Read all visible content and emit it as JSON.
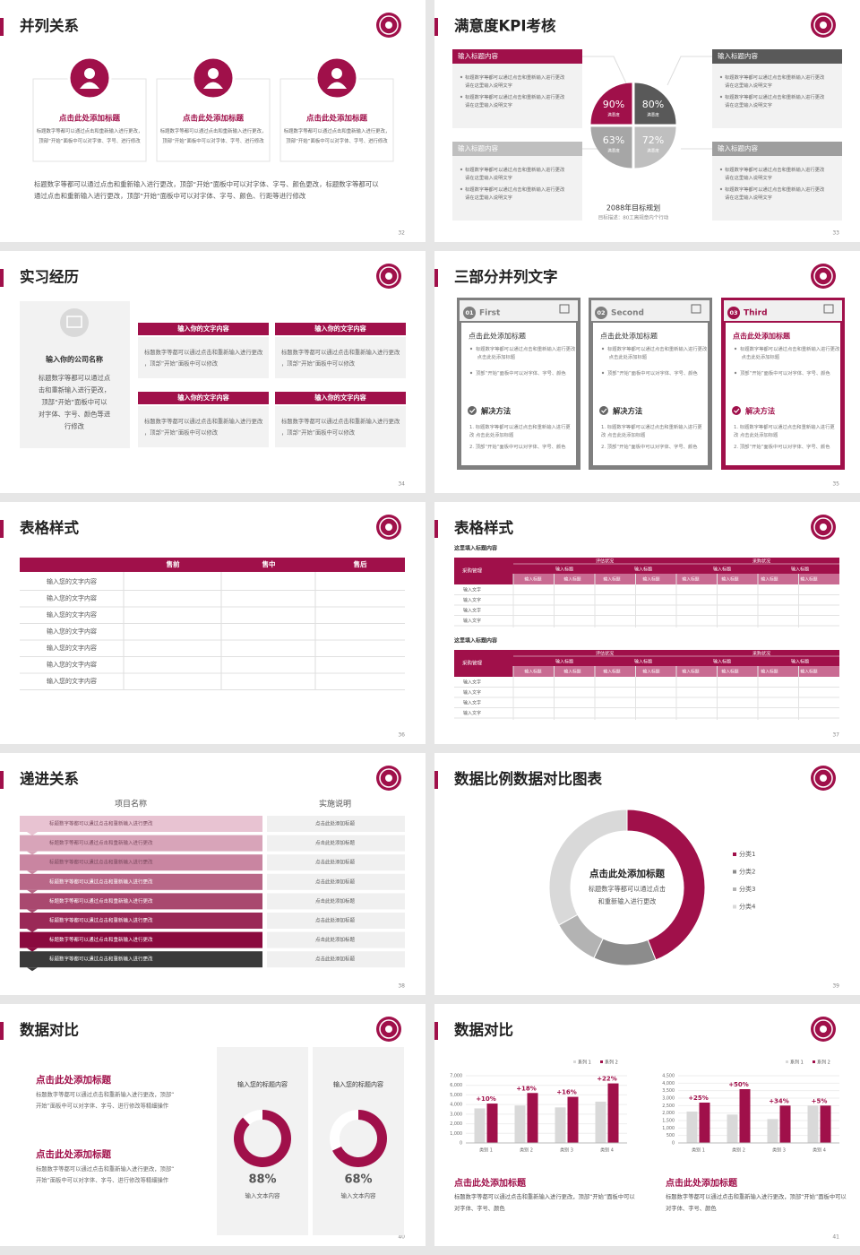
{
  "slides": [
    {
      "title": "并列关系",
      "page": "32",
      "items": [
        {
          "heading": "点击此处添加标题",
          "text": "标题数字等都可以通过点击和重新输入进行更改，顶部“开始”面板中可以对字体、字号、进行修改"
        },
        {
          "heading": "点击此处添加标题",
          "text": "标题数字等都可以通过点击和重新输入进行更改，顶部“开始”面板中可以对字体、字号、进行修改"
        },
        {
          "heading": "点击此处添加标题",
          "text": "标题数字等都可以通过点击和重新输入进行更改，顶部“开始”面板中可以对字体、字号、进行修改"
        }
      ],
      "body": "标题数字等都可以通过点击和重新输入进行更改，顶部“开始”面板中可以对字体、字号、颜色更改，标题数字等都可以通过点击和重新输入进行更改，顶部“开始”面板中可以对字体、字号、颜色、行距等进行修改"
    },
    {
      "title": "满意度KPI考核",
      "page": "33",
      "boxes": [
        {
          "header": "输入标题内容",
          "bullets": [
            "标题数字等都可以通过点击和重新输入进行更改 请在这里输入说明文字",
            "标题数字等都可以通过点击和重新输入进行更改 请在这里输入说明文字"
          ]
        },
        {
          "header": "输入标题内容",
          "bullets": [
            "标题数字等都可以通过点击和重新输入进行更改 请在这里输入说明文字",
            "标题数字等都可以通过点击和重新输入进行更改 请在这里输入说明文字"
          ]
        },
        {
          "header": "输入标题内容",
          "bullets": [
            "标题数字等都可以通过点击和重新输入进行更改 请在这里输入说明文字",
            "标题数字等都可以通过点击和重新输入进行更改 请在这里输入说明文字"
          ]
        },
        {
          "header": "输入标题内容",
          "bullets": [
            "标题数字等都可以通过点击和重新输入进行更改 请在这里输入说明文字",
            "标题数字等都可以通过点击和重新输入进行更改 请在这里输入说明文字"
          ]
        }
      ],
      "kpis": {
        "values": [
          90,
          80,
          63,
          72
        ],
        "value_labels": [
          "90%",
          "80%",
          "63%",
          "72%"
        ],
        "sublabels": [
          "满意度",
          "满意度",
          "满意度",
          "满意度"
        ],
        "colors": [
          "#a0104a",
          "#595959",
          "#a6a6a6",
          "#bfbfbf"
        ]
      },
      "caption": "2088年目标规划",
      "caption_note": "目标描述：80工离规章内个行动"
    },
    {
      "title": "实习经历",
      "page": "34",
      "company": "输入你的公司名称",
      "description": "标题数字等都可以通过点击和重新输入进行更改，顶部“开始”面板中可以对字体、字号、颜色等进行修改",
      "cards": [
        {
          "header": "输入你的文字内容",
          "text": "标题数字等都可以通过点击和重新输入进行更改，顶部“开始”面板中可以修改"
        },
        {
          "header": "输入你的文字内容",
          "text": "标题数字等都可以通过点击和重新输入进行更改，顶部“开始”面板中可以修改"
        },
        {
          "header": "输入你的文字内容",
          "text": "标题数字等都可以通过点击和重新输入进行更改，顶部“开始”面板中可以修改"
        },
        {
          "header": "输入你的文字内容",
          "text": "标题数字等都可以通过点击和重新输入进行更改，顶部“开始”面板中可以修改"
        }
      ]
    },
    {
      "title": "三部分并列文字",
      "page": "35",
      "cards": [
        {
          "num": "01",
          "name": "First",
          "heading": "点击此处添加标题",
          "bullets": [
            "标题数字等都可以通过点击和重新输入进行更改 点击此处添加标题",
            "顶部“开始”面板中可以对字体、字号、颜色"
          ],
          "method": "解决方法",
          "steps": [
            "1. 标题数字等都可以通过点击和重新输入进行更改 点击此处添加标题",
            "2. 顶部“开始”面板中可以对字体、字号、颜色"
          ]
        },
        {
          "num": "02",
          "name": "Second",
          "heading": "点击此处添加标题",
          "bullets": [
            "标题数字等都可以通过点击和重新输入进行更改 点击此处添加标题",
            "顶部“开始”面板中可以对字体、字号、颜色"
          ],
          "method": "解决方法",
          "steps": [
            "1. 标题数字等都可以通过点击和重新输入进行更改 点击此处添加标题",
            "2. 顶部“开始”面板中可以对字体、字号、颜色"
          ]
        },
        {
          "num": "03",
          "name": "Third",
          "heading": "点击此处添加标题",
          "bullets": [
            "标题数字等都可以通过点击和重新输入进行更改 点击此处添加标题",
            "顶部“开始”面板中可以对字体、字号、颜色"
          ],
          "method": "解决方法",
          "steps": [
            "1. 标题数字等都可以通过点击和重新输入进行更改 点击此处添加标题",
            "2. 顶部“开始”面板中可以对字体、字号、颜色"
          ]
        }
      ]
    },
    {
      "title": "表格样式",
      "page": "36",
      "headers": [
        "售前",
        "售中",
        "售后"
      ],
      "rows": [
        "输入您的文字内容",
        "输入您的文字内容",
        "输入您的文字内容",
        "输入您的文字内容",
        "输入您的文字内容",
        "输入您的文字内容",
        "输入您的文字内容"
      ]
    },
    {
      "title": "表格样式",
      "page": "37",
      "tables": [
        {
          "subtitle": "这里填入标题内容",
          "corner": "采购管理",
          "groups": [
            "评估状况",
            "采购状况"
          ],
          "heads": [
            "输入标题",
            "输入标题",
            "输入标题",
            "输入标题"
          ],
          "subheads": [
            "输入标题",
            "输入标题",
            "输入标题",
            "输入标题",
            "输入标题",
            "输入标题",
            "输入标题",
            "输入标题"
          ],
          "rows": [
            "输入文字",
            "输入文字",
            "输入文字",
            "输入文字"
          ]
        },
        {
          "subtitle": "这里填入标题内容",
          "corner": "采购管理",
          "groups": [
            "评估状况",
            "采购状况"
          ],
          "heads": [
            "输入标题",
            "输入标题",
            "输入标题",
            "输入标题"
          ],
          "subheads": [
            "输入标题",
            "输入标题",
            "输入标题",
            "输入标题",
            "输入标题",
            "输入标题",
            "输入标题",
            "输入标题"
          ],
          "rows": [
            "输入文字",
            "输入文字",
            "输入文字",
            "输入文字"
          ]
        }
      ]
    },
    {
      "title": "递进关系",
      "page": "38",
      "col_left": "项目名称",
      "col_right": "实施说明",
      "rows": [
        {
          "left": "标题数字等都可以通过点击和重新输入进行更改",
          "right": "点击此处添加标题"
        },
        {
          "left": "标题数字等都可以通过点击和重新输入进行更改",
          "right": "点击此处添加标题"
        },
        {
          "left": "标题数字等都可以通过点击和重新输入进行更改",
          "right": "点击此处添加标题"
        },
        {
          "left": "标题数字等都可以通过点击和重新输入进行更改",
          "right": "点击此处添加标题"
        },
        {
          "left": "标题数字等都可以通过点击和重新输入进行更改",
          "right": "点击此处添加标题"
        },
        {
          "left": "标题数字等都可以通过点击和重新输入进行更改",
          "right": "点击此处添加标题"
        },
        {
          "left": "标题数字等都可以通过点击和重新输入进行更改",
          "right": "点击此处添加标题"
        },
        {
          "left": "标题数字等都可以通过点击和重新输入进行更改",
          "right": "点击此处添加标题"
        }
      ]
    },
    {
      "title": "数据比例数据对比图表",
      "page": "39",
      "chart": {
        "type": "donut",
        "series": [
          {
            "name": "分类1",
            "value": 44,
            "color": "#a0104a"
          },
          {
            "name": "分类2",
            "value": 13,
            "color": "#8c8c8c"
          },
          {
            "name": "分类3",
            "value": 10,
            "color": "#b3b3b3"
          },
          {
            "name": "分类4",
            "value": 33,
            "color": "#d9d9d9"
          }
        ]
      },
      "heading": "点击此处添加标题",
      "text": "标题数字等都可以通过点击和重新输入进行更改"
    },
    {
      "title": "数据对比",
      "page": "40",
      "notes": [
        {
          "heading": "点击此处添加标题",
          "text": "标题数字等都可以通过点击和重新输入进行更改，顶部“开始”面板中可以对字体、字号、进行修改等精细操作"
        },
        {
          "heading": "点击此处添加标题",
          "text": "标题数字等都可以通过点击和重新输入进行更改，顶部“开始”面板中可以对字体、字号、进行修改等精细操作"
        }
      ],
      "cards": [
        {
          "title": "输入您的标题内容",
          "value": 88,
          "value_label": "88%",
          "caption": "输入文本内容"
        },
        {
          "title": "输入您的标题内容",
          "value": 68,
          "value_label": "68%",
          "caption": "输入文本内容"
        }
      ]
    },
    {
      "title": "数据对比",
      "page": "41",
      "charts": [
        {
          "type": "bar",
          "categories": [
            "类别 1",
            "类别 2",
            "类别 3",
            "类别 4"
          ],
          "series": [
            {
              "name": "系列 1",
              "color": "#d9d9d9",
              "values": [
                3600,
                3900,
                3700,
                4300
              ]
            },
            {
              "name": "系列 2",
              "color": "#a0104a",
              "values": [
                4100,
                5200,
                4800,
                6200
              ]
            }
          ],
          "annotations": [
            "+10%",
            "+18%",
            "+16%",
            "+22%"
          ],
          "ylim": [
            0,
            7000
          ],
          "yticks": [
            0,
            {
              "value": 1000,
              "label": "1,000"
            },
            {
              "value": 2000,
              "label": "2,000"
            },
            {
              "value": 3000,
              "label": "3,000"
            },
            {
              "value": 4000,
              "label": "4,000"
            },
            {
              "value": 5000,
              "label": "5,000"
            },
            {
              "value": 6000,
              "label": "6,000"
            },
            {
              "value": 7000,
              "label": "7,000"
            }
          ]
        },
        {
          "type": "bar",
          "categories": [
            "类别 1",
            "类别 2",
            "类别 3",
            "类别 4"
          ],
          "series": [
            {
              "name": "系列 1",
              "color": "#d9d9d9",
              "values": [
                2100,
                1900,
                1600,
                2500
              ]
            },
            {
              "name": "系列 2",
              "color": "#a0104a",
              "values": [
                2700,
                3600,
                2500,
                2500
              ]
            }
          ],
          "annotations": [
            "+25%",
            "+50%",
            "+34%",
            "+5%"
          ],
          "ylim": [
            0,
            4500
          ],
          "yticks": [
            0,
            500,
            {
              "value": 1000,
              "label": "1,000"
            },
            {
              "value": 1500,
              "label": "1,500"
            },
            {
              "value": 2000,
              "label": "2,000"
            },
            {
              "value": 2500,
              "label": "2,500"
            },
            {
              "value": 3000,
              "label": "3,000"
            },
            {
              "value": 3500,
              "label": "3,500"
            },
            {
              "value": 4000,
              "label": "4,000"
            },
            {
              "value": 4500,
              "label": "4,500"
            }
          ]
        }
      ],
      "notes": [
        {
          "heading": "点击此处添加标题",
          "text": "标题数字等都可以通过点击和重新输入进行更改，顶部“开始”面板中可以对字体、字号、颜色"
        },
        {
          "heading": "点击此处添加标题",
          "text": "标题数字等都可以通过点击和重新输入进行更改，顶部“开始”面板中可以对字体、字号、颜色"
        }
      ]
    }
  ]
}
